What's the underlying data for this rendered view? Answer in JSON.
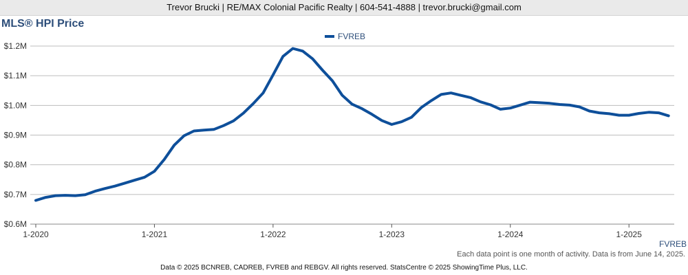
{
  "header": {
    "contact": "Trevor Brucki | RE/MAX Colonial Pacific Realty | 604-541-4888 | trevor.brucki@gmail.com"
  },
  "colors": {
    "series": "#0e4f9a",
    "title": "#2d4e7a",
    "grid": "#bdbdbd"
  },
  "chart_data": {
    "type": "line",
    "title": "MLS® HPI Price",
    "legend_placement": "top-center",
    "grid": true,
    "y_ticks": [
      "$0.6M",
      "$0.7M",
      "$0.8M",
      "$0.9M",
      "$1.0M",
      "$1.1M",
      "$1.2M"
    ],
    "y_tick_values": [
      0.6,
      0.7,
      0.8,
      0.9,
      1.0,
      1.1,
      1.2
    ],
    "x_ticks": [
      "1-2020",
      "1-2021",
      "1-2022",
      "1-2023",
      "1-2024",
      "1-2025"
    ],
    "ylim": [
      0.6,
      1.2
    ],
    "series": [
      {
        "name": "FVREB",
        "x": [
          "1-2020",
          "2-2020",
          "3-2020",
          "4-2020",
          "5-2020",
          "6-2020",
          "7-2020",
          "8-2020",
          "9-2020",
          "10-2020",
          "11-2020",
          "12-2020",
          "1-2021",
          "2-2021",
          "3-2021",
          "4-2021",
          "5-2021",
          "6-2021",
          "7-2021",
          "8-2021",
          "9-2021",
          "10-2021",
          "11-2021",
          "12-2021",
          "1-2022",
          "2-2022",
          "3-2022",
          "4-2022",
          "5-2022",
          "6-2022",
          "7-2022",
          "8-2022",
          "9-2022",
          "10-2022",
          "11-2022",
          "12-2022",
          "1-2023",
          "2-2023",
          "3-2023",
          "4-2023",
          "5-2023",
          "6-2023",
          "7-2023",
          "8-2023",
          "9-2023",
          "10-2023",
          "11-2023",
          "12-2023",
          "1-2024",
          "2-2024",
          "3-2024",
          "4-2024",
          "5-2024",
          "6-2024",
          "7-2024",
          "8-2024",
          "9-2024",
          "10-2024",
          "11-2024",
          "12-2024",
          "1-2025",
          "2-2025",
          "3-2025",
          "4-2025",
          "5-2025"
        ],
        "values": [
          0.68,
          0.69,
          0.696,
          0.697,
          0.696,
          0.699,
          0.711,
          0.72,
          0.728,
          0.738,
          0.748,
          0.758,
          0.778,
          0.818,
          0.866,
          0.898,
          0.914,
          0.917,
          0.919,
          0.932,
          0.948,
          0.974,
          1.006,
          1.042,
          1.103,
          1.165,
          1.192,
          1.183,
          1.157,
          1.119,
          1.083,
          1.034,
          1.004,
          0.989,
          0.97,
          0.949,
          0.936,
          0.945,
          0.96,
          0.993,
          1.016,
          1.037,
          1.042,
          1.034,
          1.026,
          1.012,
          1.002,
          0.987,
          0.991,
          1.001,
          1.011,
          1.009,
          1.007,
          1.003,
          1.001,
          0.995,
          0.981,
          0.975,
          0.972,
          0.967,
          0.967,
          0.973,
          0.977,
          0.975,
          0.965
        ]
      }
    ]
  },
  "series_label": "FVREB",
  "note": "Each data point is one month of activity. Data is from June 14, 2025.",
  "footer": "Data © 2025 BCNREB, CADREB, FVREB and REBGV. All rights reserved. StatsCentre © 2025 ShowingTime Plus, LLC."
}
